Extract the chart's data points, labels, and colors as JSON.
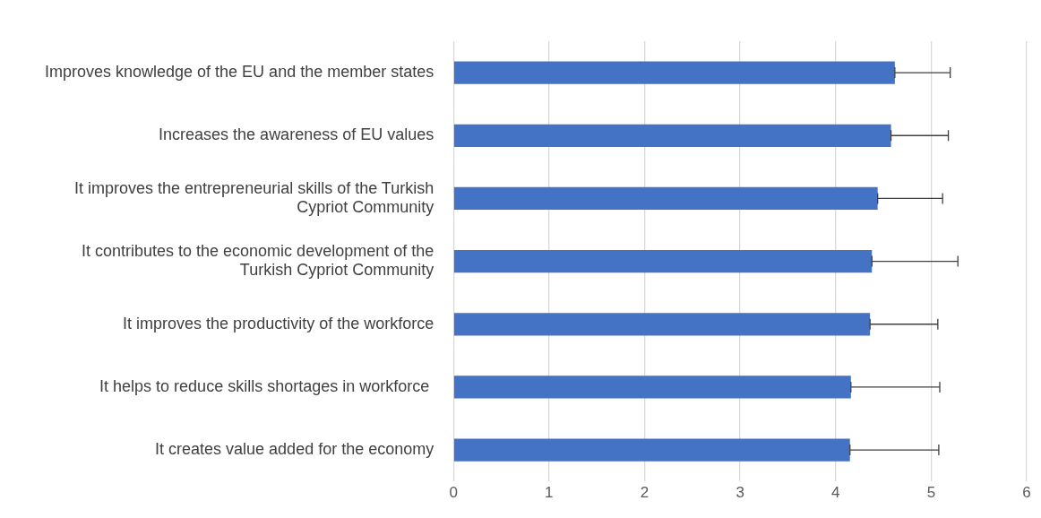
{
  "chart_data": {
    "type": "bar",
    "orientation": "horizontal",
    "categories": [
      "Improves knowledge of the EU and the member states",
      "Increases the awareness of EU values",
      "It improves the entrepreneurial skills of the Turkish Cypriot Community",
      "It contributes to the economic development of the Turkish Cypriot Community",
      "It improves the productivity of the workforce",
      "It helps to reduce skills shortages in workforce ",
      "It creates value added for the economy"
    ],
    "values": [
      4.62,
      4.58,
      4.44,
      4.38,
      4.36,
      4.16,
      4.15
    ],
    "errors": [
      [
        4.62,
        5.2
      ],
      [
        4.58,
        5.18
      ],
      [
        4.44,
        5.12
      ],
      [
        4.38,
        5.28
      ],
      [
        4.36,
        5.07
      ],
      [
        4.16,
        5.09
      ],
      [
        4.15,
        5.08
      ]
    ],
    "color": "#4472c4",
    "xlim": [
      0,
      6
    ],
    "xticks": [
      0,
      1,
      2,
      3,
      4,
      5,
      6
    ],
    "grid": "x",
    "legend": false
  }
}
